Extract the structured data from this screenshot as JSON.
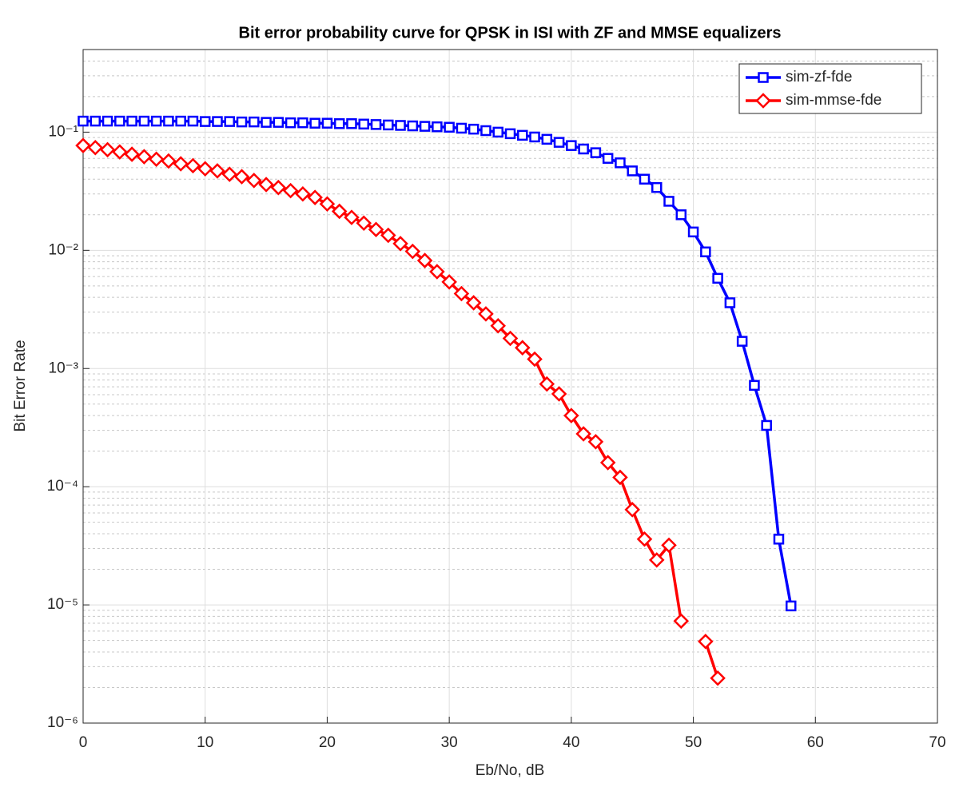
{
  "chart_data": {
    "type": "line",
    "title": "Bit error probability curve for QPSK in ISI with ZF and MMSE equalizers",
    "x_label": "Eb/No, dB",
    "y_label": "Bit Error Rate",
    "xlim": [
      0,
      70
    ],
    "xticks": [
      0,
      10,
      20,
      30,
      40,
      50,
      60,
      70
    ],
    "ylim": [
      1e-06,
      0.5
    ],
    "log_y": true,
    "grid": true,
    "minor_grid": true,
    "legend": "northeast",
    "yticks": [
      {
        "value": 1e-06,
        "label": "10⁻⁶"
      },
      {
        "value": 1e-05,
        "label": "10⁻⁵"
      },
      {
        "value": 0.0001,
        "label": "10⁻⁴"
      },
      {
        "value": 0.001,
        "label": "10⁻³"
      },
      {
        "value": 0.01,
        "label": "10⁻²"
      },
      {
        "value": 0.1,
        "label": "10⁻¹"
      }
    ],
    "series": [
      {
        "name": "sim-zf-fde",
        "color": "#0000ff",
        "marker": "square",
        "x": [
          0,
          1,
          2,
          3,
          4,
          5,
          6,
          7,
          8,
          9,
          10,
          11,
          12,
          13,
          14,
          15,
          16,
          17,
          18,
          19,
          20,
          21,
          22,
          23,
          24,
          25,
          26,
          27,
          28,
          29,
          30,
          31,
          32,
          33,
          34,
          35,
          36,
          37,
          38,
          39,
          40,
          41,
          42,
          43,
          44,
          45,
          46,
          47,
          48,
          49,
          50,
          51,
          52,
          53,
          54,
          55,
          56,
          57,
          58
        ],
        "values": [
          0.124,
          0.124,
          0.124,
          0.124,
          0.124,
          0.124,
          0.124,
          0.124,
          0.124,
          0.124,
          0.123,
          0.123,
          0.123,
          0.122,
          0.122,
          0.121,
          0.121,
          0.12,
          0.12,
          0.119,
          0.119,
          0.118,
          0.118,
          0.117,
          0.116,
          0.115,
          0.114,
          0.113,
          0.112,
          0.111,
          0.11,
          0.108,
          0.106,
          0.103,
          0.1,
          0.097,
          0.094,
          0.091,
          0.087,
          0.082,
          0.077,
          0.072,
          0.067,
          0.06,
          0.055,
          0.047,
          0.04,
          0.034,
          0.026,
          0.02,
          0.0143,
          0.0097,
          0.0058,
          0.0036,
          0.0017,
          0.00072,
          0.00033,
          3.6e-05,
          9.8e-06
        ]
      },
      {
        "name": "sim-mmse-fde",
        "color": "#ff0000",
        "marker": "diamond",
        "x": [
          0,
          1,
          2,
          3,
          4,
          5,
          6,
          7,
          8,
          9,
          10,
          11,
          12,
          13,
          14,
          15,
          16,
          17,
          18,
          19,
          20,
          21,
          22,
          23,
          24,
          25,
          26,
          27,
          28,
          29,
          30,
          31,
          32,
          33,
          34,
          35,
          36,
          37,
          38,
          39,
          40,
          41,
          42,
          43,
          44,
          45,
          46,
          47,
          48,
          49,
          50,
          51,
          52
        ],
        "values": [
          0.077,
          0.074,
          0.071,
          0.068,
          0.065,
          0.062,
          0.059,
          0.057,
          0.054,
          0.052,
          0.049,
          0.047,
          0.044,
          0.042,
          0.039,
          0.036,
          0.034,
          0.032,
          0.03,
          0.028,
          0.0247,
          0.0214,
          0.019,
          0.017,
          0.015,
          0.0134,
          0.0114,
          0.0098,
          0.0082,
          0.0066,
          0.0054,
          0.0043,
          0.0036,
          0.0029,
          0.0023,
          0.0018,
          0.0015,
          0.0012,
          0.00074,
          0.00061,
          0.0004,
          0.00028,
          0.00024,
          0.00016,
          0.00012,
          6.4e-05,
          3.6e-05,
          2.4e-05,
          3.2e-05,
          7.3e-06,
          null,
          4.9e-06,
          2.4e-06
        ]
      }
    ]
  }
}
